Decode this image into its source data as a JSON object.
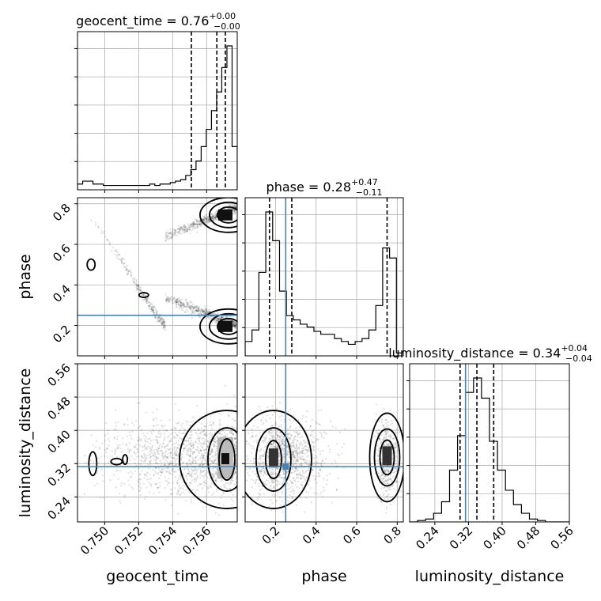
{
  "chart_data": {
    "type": "corner",
    "parameters": [
      "geocent_time",
      "phase",
      "luminosity_distance"
    ],
    "titles": [
      {
        "param": "geocent_time",
        "median": "0.76",
        "plus": "+0.00",
        "minus": "−0.00"
      },
      {
        "param": "phase",
        "median": "0.28",
        "plus": "+0.47",
        "minus": "−0.11"
      },
      {
        "param": "luminosity_distance",
        "median": "0.34",
        "plus": "+0.04",
        "minus": "−0.04"
      }
    ],
    "axis_labels": {
      "x": [
        "geocent_time",
        "phase",
        "luminosity_distance"
      ],
      "y": [
        "",
        "phase",
        "luminosity_distance"
      ]
    },
    "ranges": {
      "geocent_time": [
        0.7484,
        0.7578
      ],
      "phase": [
        0.05,
        0.83
      ],
      "luminosity_distance": [
        0.18,
        0.56
      ]
    },
    "ticks": {
      "geocent_time": {
        "values": [
          0.75,
          0.752,
          0.754,
          0.756
        ],
        "labels": [
          "0.750",
          "0.752",
          "0.754",
          "0.756"
        ]
      },
      "phase": {
        "values": [
          0.2,
          0.4,
          0.6,
          0.8
        ],
        "labels": [
          "0.2",
          "0.4",
          "0.6",
          "0.8"
        ]
      },
      "luminosity_distance": {
        "values": [
          0.24,
          0.32,
          0.4,
          0.48,
          0.56
        ],
        "labels": [
          "0.24",
          "0.32",
          "0.40",
          "0.48",
          "0.56"
        ]
      }
    },
    "truths": {
      "geocent_time": null,
      "phase": 0.25,
      "luminosity_distance": 0.313
    },
    "quantiles": {
      "geocent_time": [
        0.7551,
        0.7566,
        0.7571
      ],
      "phase": [
        0.17,
        0.28,
        0.75
      ],
      "luminosity_distance": [
        0.3,
        0.34,
        0.38
      ]
    },
    "histograms": {
      "geocent_time": {
        "edges_range": [
          0.7484,
          0.7578
        ],
        "counts": [
          0.04,
          0.06,
          0.06,
          0.04,
          0.04,
          0.03,
          0.03,
          0.03,
          0.03,
          0.03,
          0.03,
          0.03,
          0.03,
          0.03,
          0.04,
          0.03,
          0.04,
          0.04,
          0.05,
          0.06,
          0.07,
          0.1,
          0.14,
          0.2,
          0.3,
          0.42,
          0.55,
          0.68,
          0.85,
          1.0,
          0.3
        ]
      },
      "phase": {
        "edges_range": [
          0.05,
          0.83
        ],
        "counts": [
          0.1,
          0.18,
          0.58,
          1.0,
          0.8,
          0.45,
          0.28,
          0.25,
          0.22,
          0.2,
          0.17,
          0.15,
          0.15,
          0.12,
          0.1,
          0.08,
          0.1,
          0.12,
          0.18,
          0.35,
          0.75,
          0.68,
          0.02
        ]
      },
      "luminosity_distance": {
        "edges_range": [
          0.18,
          0.56
        ],
        "counts": [
          0.0,
          0.01,
          0.02,
          0.06,
          0.14,
          0.36,
          0.6,
          0.9,
          1.0,
          0.86,
          0.56,
          0.36,
          0.22,
          0.12,
          0.06,
          0.02,
          0.01,
          0.0,
          0.0,
          0.0
        ]
      }
    },
    "grid": true,
    "contour_levels": 3
  }
}
